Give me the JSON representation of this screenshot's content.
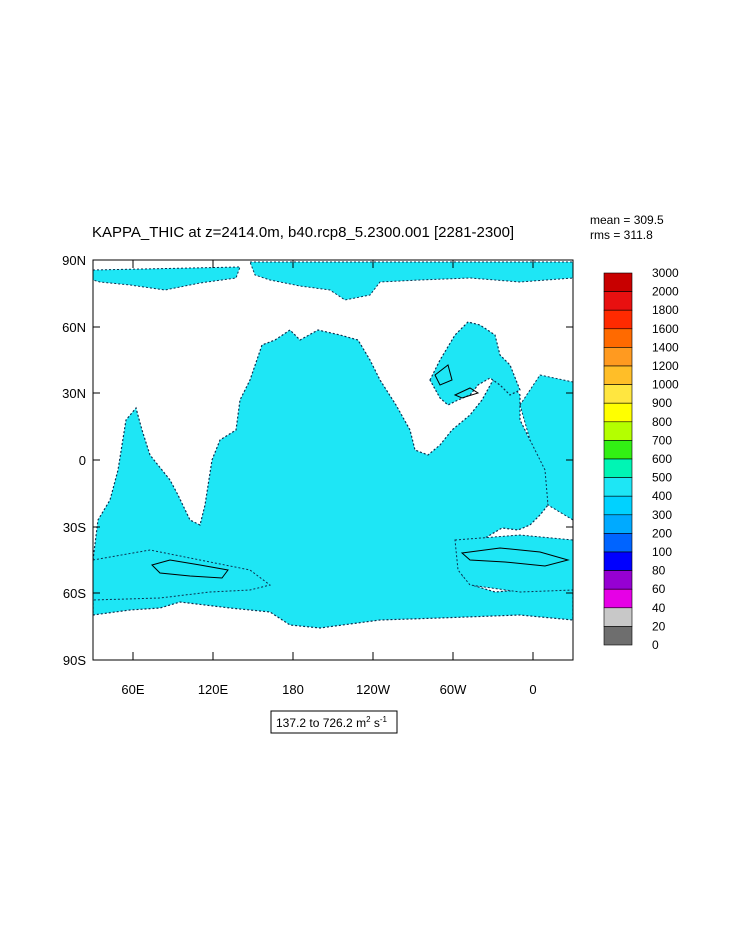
{
  "title": "KAPPA_THIC at z=2414.0m, b40.rcp8_5.2300.001 [2281-2300]",
  "stats": {
    "mean_text": "mean = 309.5",
    "rms_text": "rms = 311.8"
  },
  "map": {
    "lat_ticks": [
      "90N",
      "60N",
      "30N",
      "0",
      "30S",
      "60S",
      "90S"
    ],
    "lon_ticks": [
      "60E",
      "120E",
      "180",
      "120W",
      "60W",
      "0"
    ],
    "ocean_fill_level": "400 - 500",
    "colors": {
      "ocean": "#1ee6f5",
      "land": "#ffffff",
      "contour": "#000000"
    }
  },
  "colorbar": {
    "levels": [
      "3000",
      "2000",
      "1800",
      "1600",
      "1400",
      "1200",
      "1000",
      "900",
      "800",
      "700",
      "600",
      "500",
      "400",
      "300",
      "200",
      "100",
      "80",
      "60",
      "40",
      "20",
      "0"
    ],
    "colors": [
      "#c80000",
      "#e81010",
      "#ff2a00",
      "#ff6a00",
      "#ff9a20",
      "#ffbe28",
      "#ffe640",
      "#ffff00",
      "#b4ff00",
      "#32f014",
      "#00f5b4",
      "#1ee6f5",
      "#00d2ff",
      "#00aaff",
      "#0064ff",
      "#0000ff",
      "#9600d2",
      "#e600e6",
      "#c8c8c8",
      "#6e6e6e"
    ]
  },
  "range": {
    "text": "137.2 to 726.2 m",
    "sup1": "2",
    "mid": " s",
    "sup2": "-1"
  }
}
